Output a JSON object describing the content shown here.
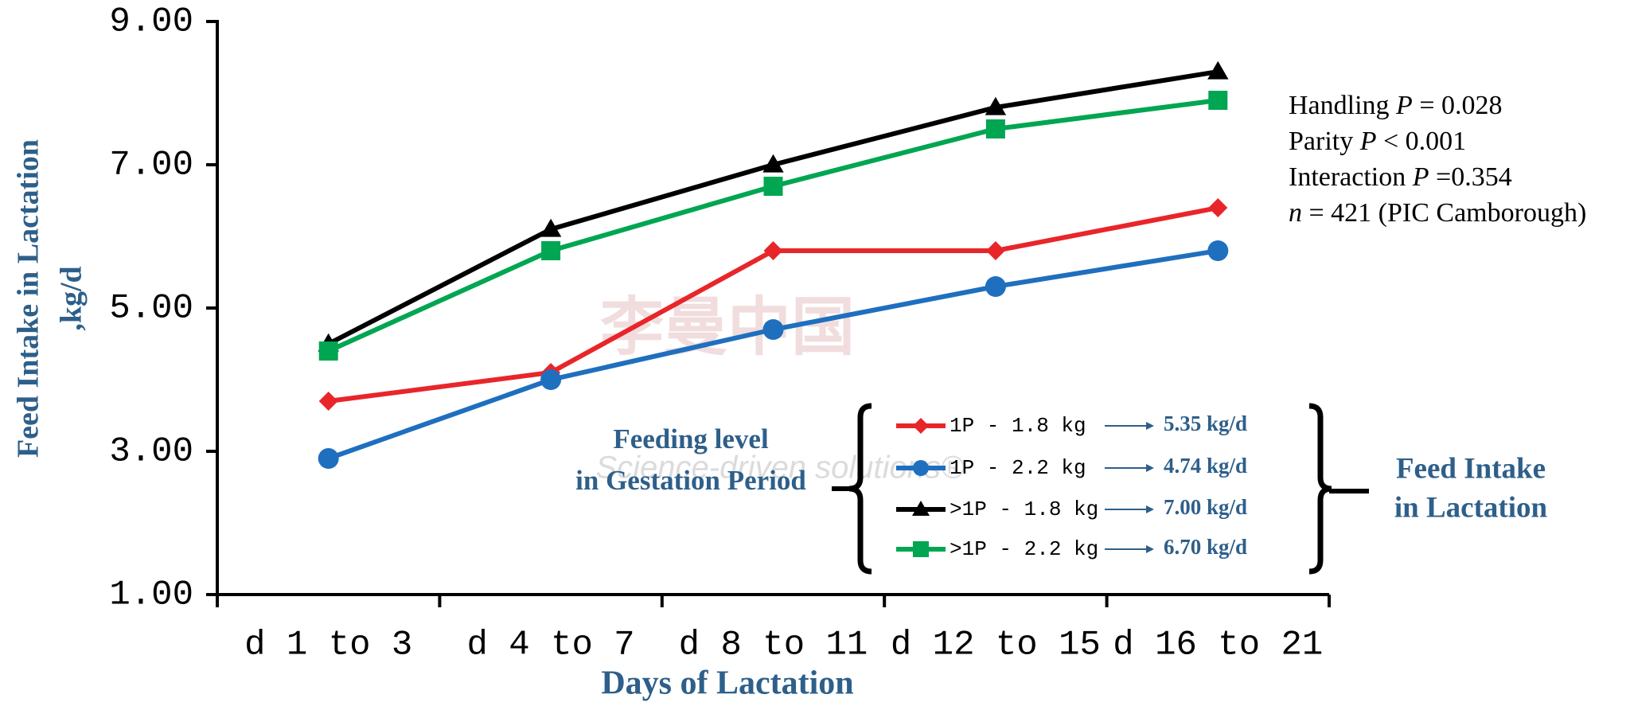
{
  "chart_data": {
    "type": "line",
    "y_label_lines": [
      "Feed Intake in Lactation",
      ",kg/d"
    ],
    "x_label": "Days of Lactation",
    "categories": [
      "d 1 to 3",
      "d 4 to 7",
      "d 8 to 11",
      "d 12 to 15",
      "d 16 to 21"
    ],
    "series": [
      {
        "name": "1P - 1.8 kg",
        "color": "#e8262a",
        "marker": "diamond",
        "values": [
          3.7,
          4.1,
          5.8,
          5.8,
          6.4
        ],
        "legend_note": "5.35 kg/d"
      },
      {
        "name": "1P - 2.2 kg",
        "color": "#1f6fbf",
        "marker": "circle",
        "values": [
          2.9,
          4.0,
          4.7,
          5.3,
          5.8
        ],
        "legend_note": "4.74 kg/d"
      },
      {
        "name": ">1P - 1.8 kg",
        "color": "#000000",
        "marker": "triangle",
        "values": [
          4.5,
          6.1,
          7.0,
          7.8,
          8.3
        ],
        "legend_note": "7.00 kg/d"
      },
      {
        "name": ">1P - 2.2 kg",
        "color": "#00a651",
        "marker": "square",
        "values": [
          4.4,
          5.8,
          6.7,
          7.5,
          7.9
        ],
        "legend_note": "6.70 kg/d"
      }
    ],
    "ylim": [
      1,
      9
    ],
    "yticks": [
      {
        "value": 1,
        "label": "1.00"
      },
      {
        "value": 3,
        "label": "3.00"
      },
      {
        "value": 5,
        "label": "5.00"
      },
      {
        "value": 7,
        "label": "7.00"
      },
      {
        "value": 9,
        "label": "9.00"
      }
    ],
    "legend_title_lines": [
      "Feeding level",
      "in Gestation Period"
    ],
    "legend_group_lines": [
      "Feed Intake",
      "in Lactation"
    ],
    "stats": [
      [
        "Handling ",
        "P",
        " = 0.028"
      ],
      [
        "Parity ",
        "P",
        " < 0.001"
      ],
      [
        "Interaction ",
        "P",
        " =0.354"
      ],
      [
        "n",
        " = 421 (PIC Camborough)"
      ]
    ],
    "watermark": [
      "李曼中国",
      "Science-driven solutions®"
    ]
  }
}
